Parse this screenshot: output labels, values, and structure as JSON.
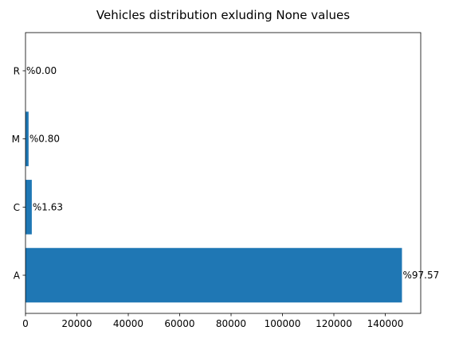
{
  "chart_data": {
    "type": "bar",
    "orientation": "horizontal",
    "title": "Vehicles distribution exluding None values",
    "xlabel": "",
    "ylabel": "",
    "categories": [
      "A",
      "C",
      "M",
      "R"
    ],
    "values": [
      146500,
      2450,
      1200,
      5
    ],
    "data_labels": [
      "%97.57",
      "%1.63",
      "%0.80",
      "%0.00"
    ],
    "xlim": [
      0,
      153800
    ],
    "xticks": [
      0,
      20000,
      40000,
      60000,
      80000,
      100000,
      120000,
      140000
    ],
    "bar_color": "#1f77b4",
    "grid": false,
    "legend": "none"
  }
}
